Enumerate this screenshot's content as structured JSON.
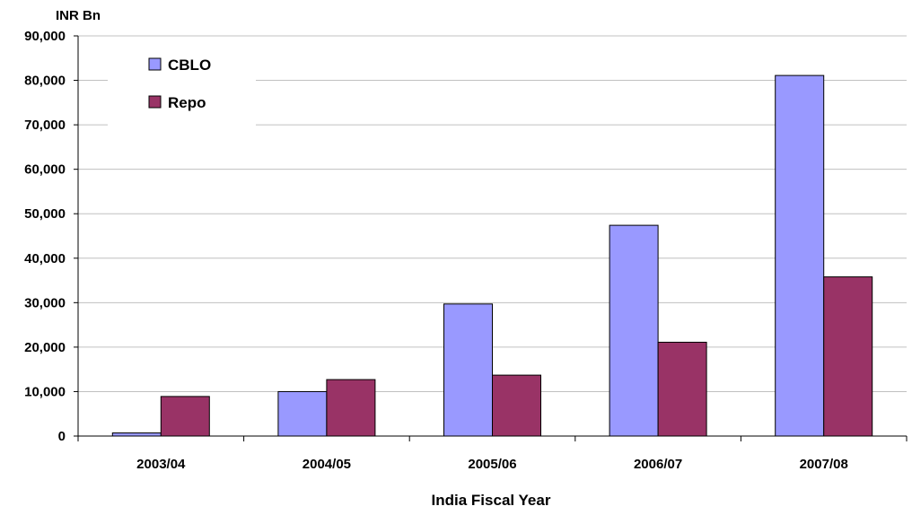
{
  "chart_data": {
    "type": "bar",
    "title": "",
    "ylabel": "INR Bn",
    "xlabel": "India Fiscal Year",
    "categories": [
      "2003/04",
      "2004/05",
      "2005/06",
      "2006/07",
      "2007/08"
    ],
    "ylim": [
      0,
      90000
    ],
    "yticks": [
      0,
      10000,
      20000,
      30000,
      40000,
      50000,
      60000,
      70000,
      80000,
      90000
    ],
    "ytick_labels": [
      "0",
      "10,000",
      "20,000",
      "30,000",
      "40,000",
      "50,000",
      "60,000",
      "70,000",
      "80,000",
      "90,000"
    ],
    "grid": true,
    "legend_position": "top-left",
    "series": [
      {
        "name": "CBLO",
        "color": "#9999FF",
        "values": [
          700,
          10000,
          29700,
          47400,
          81100
        ]
      },
      {
        "name": "Repo",
        "color": "#993366",
        "values": [
          8900,
          12700,
          13700,
          21100,
          35800
        ]
      }
    ]
  }
}
